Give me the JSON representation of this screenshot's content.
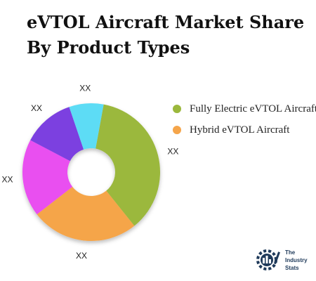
{
  "title": "eVTOL Aircraft Market Share By Product Types",
  "chart_data": {
    "type": "pie",
    "title": "eVTOL Aircraft Market Share By Product Types",
    "donut": true,
    "legend_position": "right",
    "slices": [
      {
        "value": 36,
        "label": "XX",
        "color": "#9bb83c"
      },
      {
        "value": 25,
        "label": "XX",
        "color": "#f5a54a"
      },
      {
        "value": 18,
        "label": "XX",
        "color": "#e94ff0"
      },
      {
        "value": 12,
        "label": "XX",
        "color": "#7b3fe0"
      },
      {
        "value": 8,
        "label": "XX",
        "color": "#5ddcf5"
      }
    ],
    "legend": [
      {
        "label": "Fully Electric eVTOL Aircraft",
        "color": "#9bb83c"
      },
      {
        "label": "Hybrid eVTOL Aircraft",
        "color": "#f5a54a"
      }
    ]
  },
  "logo": {
    "line1": "The",
    "line2": "Industry",
    "line3": "Stats"
  }
}
